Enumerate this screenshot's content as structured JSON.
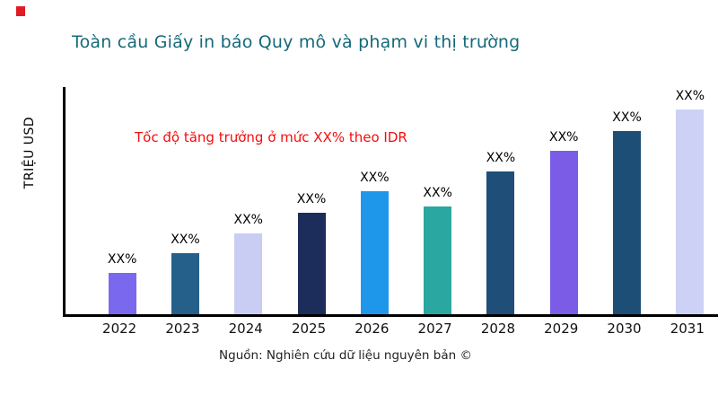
{
  "page": {
    "background": "#ffffff",
    "marker_color": "#e01b24"
  },
  "header": {
    "title": "Toàn cầu Giấy in báo Quy mô và phạm vi thị trường",
    "title_color": "#15697a"
  },
  "annotation": {
    "text": "Tốc độ tăng trưởng ở mức XX% theo IDR",
    "color": "#f40d0d"
  },
  "footer": {
    "source": "Nguồn: Nghiên cứu dữ liệu nguyên bản ©"
  },
  "chart_data": {
    "type": "bar",
    "title": "Toàn cầu Giấy in báo Quy mô và phạm vi thị trường",
    "xlabel": "",
    "ylabel": "TRIỆU USD",
    "categories": [
      "2022",
      "2023",
      "2024",
      "2025",
      "2026",
      "2027",
      "2028",
      "2029",
      "2030",
      "2031"
    ],
    "values": [
      46,
      68,
      90,
      113,
      137,
      120,
      159,
      182,
      204,
      228
    ],
    "values_unit": "relative-height (numeric values not shown; all bars labeled XX%)",
    "bar_labels": [
      "XX%",
      "XX%",
      "XX%",
      "XX%",
      "XX%",
      "XX%",
      "XX%",
      "XX%",
      "XX%",
      "XX%"
    ],
    "colors": [
      "#7a68ee",
      "#25608a",
      "#c9cdf4",
      "#1c2d5c",
      "#1e97ea",
      "#2aa7a0",
      "#1f4e79",
      "#7a5ce6",
      "#1d4f76",
      "#cdd1f5"
    ],
    "grid": false,
    "legend": "none",
    "axis_color": "#000000",
    "annotation": "Tốc độ tăng trưởng ở mức XX% theo IDR"
  }
}
